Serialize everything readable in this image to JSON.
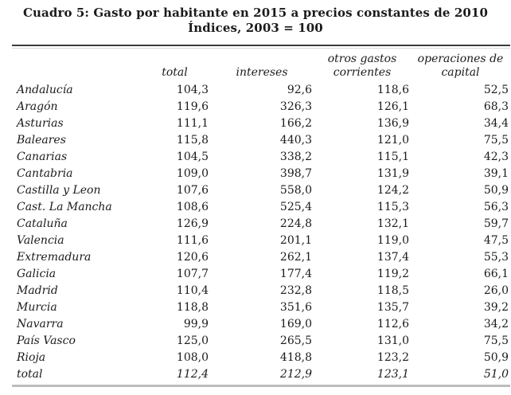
{
  "colors": {
    "background": "#ffffff",
    "text": "#1b1b1b",
    "top_rule": "#3d3d3d",
    "bottom_rule": "#bdbdbd"
  },
  "chart_data": {
    "type": "table",
    "title": "Cuadro 5: Gasto por habitante en 2015 a precios constantes de 2010",
    "subtitle": "Índices, 2003 = 100",
    "columns": [
      "total",
      "intereses",
      "otros gastos corrientes",
      "operaciones de capital"
    ],
    "rows": [
      {
        "name": "Andalucía",
        "values": [
          "104,3",
          "92,6",
          "118,6",
          "52,5"
        ]
      },
      {
        "name": "Aragón",
        "values": [
          "119,6",
          "326,3",
          "126,1",
          "68,3"
        ]
      },
      {
        "name": "Asturias",
        "values": [
          "111,1",
          "166,2",
          "136,9",
          "34,4"
        ]
      },
      {
        "name": "Baleares",
        "values": [
          "115,8",
          "440,3",
          "121,0",
          "75,5"
        ]
      },
      {
        "name": "Canarias",
        "values": [
          "104,5",
          "338,2",
          "115,1",
          "42,3"
        ]
      },
      {
        "name": "Cantabria",
        "values": [
          "109,0",
          "398,7",
          "131,9",
          "39,1"
        ]
      },
      {
        "name": "Castilla y Leon",
        "values": [
          "107,6",
          "558,0",
          "124,2",
          "50,9"
        ]
      },
      {
        "name": "Cast. La Mancha",
        "values": [
          "108,6",
          "525,4",
          "115,3",
          "56,3"
        ]
      },
      {
        "name": "Cataluña",
        "values": [
          "126,9",
          "224,8",
          "132,1",
          "59,7"
        ]
      },
      {
        "name": "Valencia",
        "values": [
          "111,6",
          "201,1",
          "119,0",
          "47,5"
        ]
      },
      {
        "name": "Extremadura",
        "values": [
          "120,6",
          "262,1",
          "137,4",
          "55,3"
        ]
      },
      {
        "name": "Galicia",
        "values": [
          "107,7",
          "177,4",
          "119,2",
          "66,1"
        ]
      },
      {
        "name": "Madrid",
        "values": [
          "110,4",
          "232,8",
          "118,5",
          "26,0"
        ]
      },
      {
        "name": "Murcia",
        "values": [
          "118,8",
          "351,6",
          "135,7",
          "39,2"
        ]
      },
      {
        "name": "Navarra",
        "values": [
          "99,9",
          "169,0",
          "112,6",
          "34,2"
        ]
      },
      {
        "name": "País Vasco",
        "values": [
          "125,0",
          "265,5",
          "131,0",
          "75,5"
        ]
      },
      {
        "name": "Rioja",
        "values": [
          "108,0",
          "418,8",
          "123,2",
          "50,9"
        ]
      },
      {
        "name": "total",
        "values": [
          "112,4",
          "212,9",
          "123,1",
          "51,0"
        ],
        "emphasis": true
      }
    ]
  }
}
